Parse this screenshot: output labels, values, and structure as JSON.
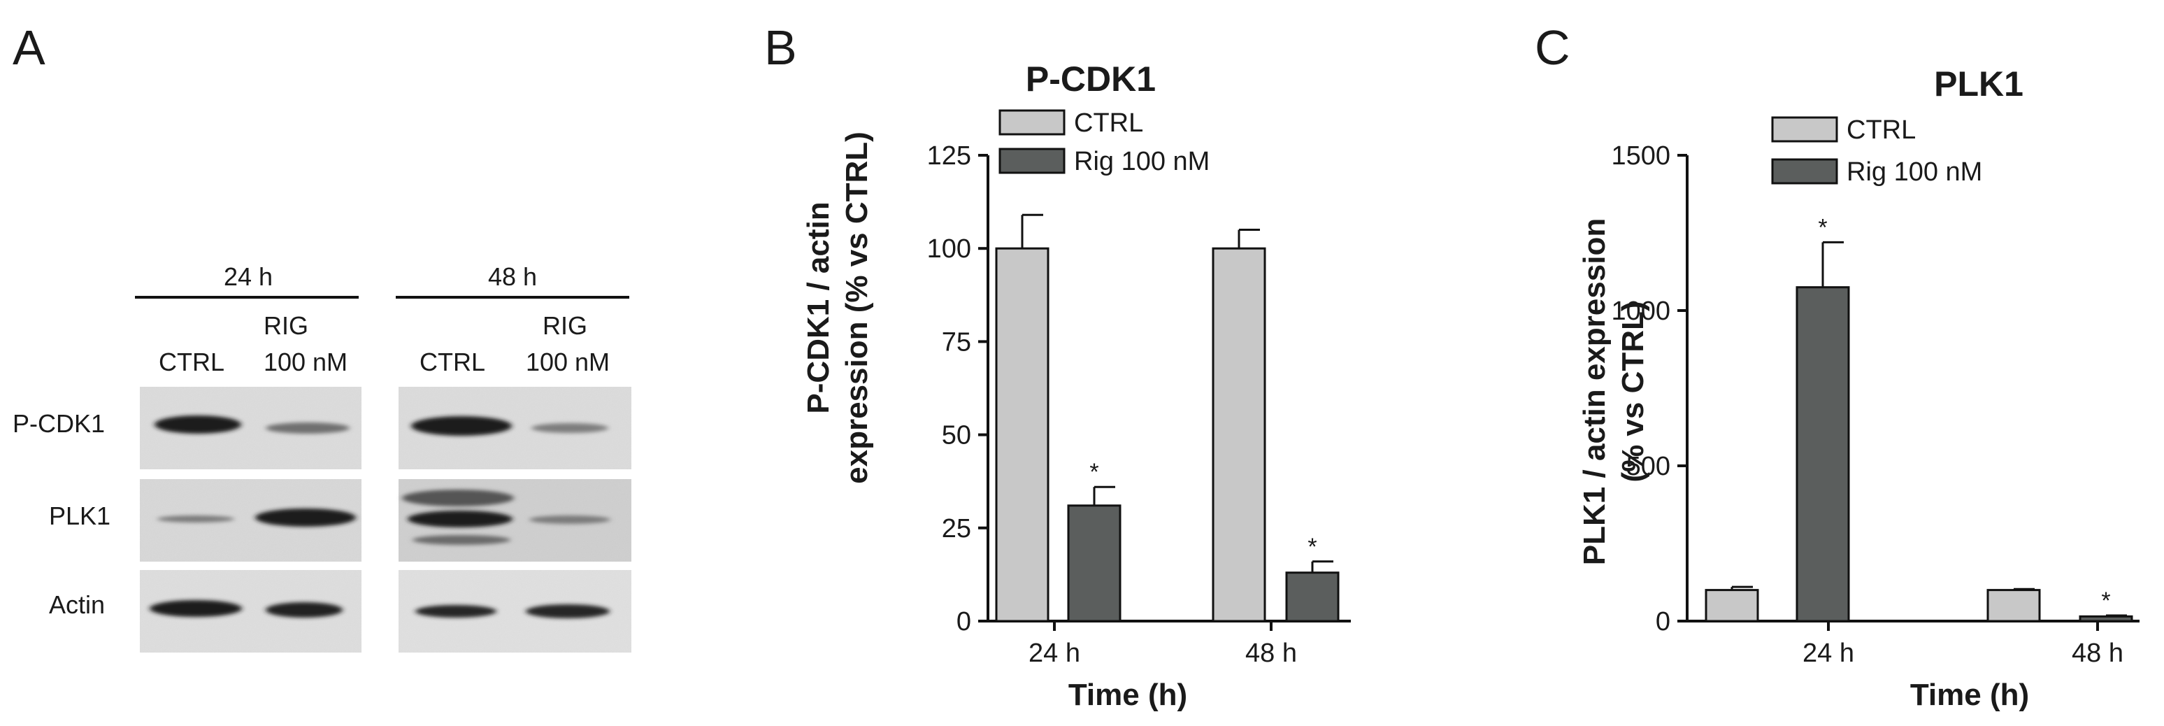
{
  "panel_a": {
    "letter": "A",
    "groups": [
      {
        "label": "24 h",
        "lanes": [
          {
            "line1": "",
            "line2": "CTRL"
          },
          {
            "line1": "RIG",
            "line2": "100 nM"
          }
        ]
      },
      {
        "label": "48 h",
        "lanes": [
          {
            "line1": "",
            "line2": "CTRL"
          },
          {
            "line1": "RIG",
            "line2": "100 nM"
          }
        ]
      }
    ],
    "rows": [
      "P-CDK1",
      "PLK1",
      "Actin"
    ]
  },
  "chart_data": [
    {
      "panel": "B",
      "type": "bar",
      "title": "P-CDK1",
      "xlabel": "Time (h)",
      "ylabel": [
        "P-CDK1 / actin",
        "expression (% vs CTRL)"
      ],
      "categories": [
        "24 h",
        "48 h"
      ],
      "ylim": [
        0,
        125
      ],
      "yticks": [
        0,
        25,
        50,
        75,
        100,
        125
      ],
      "legend_position": "top-left",
      "series": [
        {
          "name": "CTRL",
          "color": "#c8c8c8",
          "values": [
            100,
            100
          ],
          "errors": [
            9,
            5
          ],
          "marks": [
            "",
            ""
          ]
        },
        {
          "name": "Rig 100 nM",
          "color": "#5b5e5d",
          "values": [
            31,
            13
          ],
          "errors": [
            5,
            3
          ],
          "marks": [
            "*",
            "*"
          ]
        }
      ]
    },
    {
      "panel": "C",
      "type": "bar",
      "title": "PLK1",
      "xlabel": "Time (h)",
      "ylabel": [
        "PLK1 / actin expression",
        "(% vs CTRL)"
      ],
      "categories": [
        "24 h",
        "48 h"
      ],
      "ylim": [
        0,
        1500
      ],
      "yticks": [
        0,
        500,
        1000,
        1500
      ],
      "legend_position": "top-left",
      "series": [
        {
          "name": "CTRL",
          "color": "#c8c8c8",
          "values": [
            100,
            100
          ],
          "errors": [
            10,
            3
          ],
          "marks": [
            "",
            ""
          ]
        },
        {
          "name": "Rig 100 nM",
          "color": "#5b5e5d",
          "values": [
            1075,
            15
          ],
          "errors": [
            145,
            3
          ],
          "marks": [
            "*",
            "*"
          ]
        }
      ]
    }
  ]
}
